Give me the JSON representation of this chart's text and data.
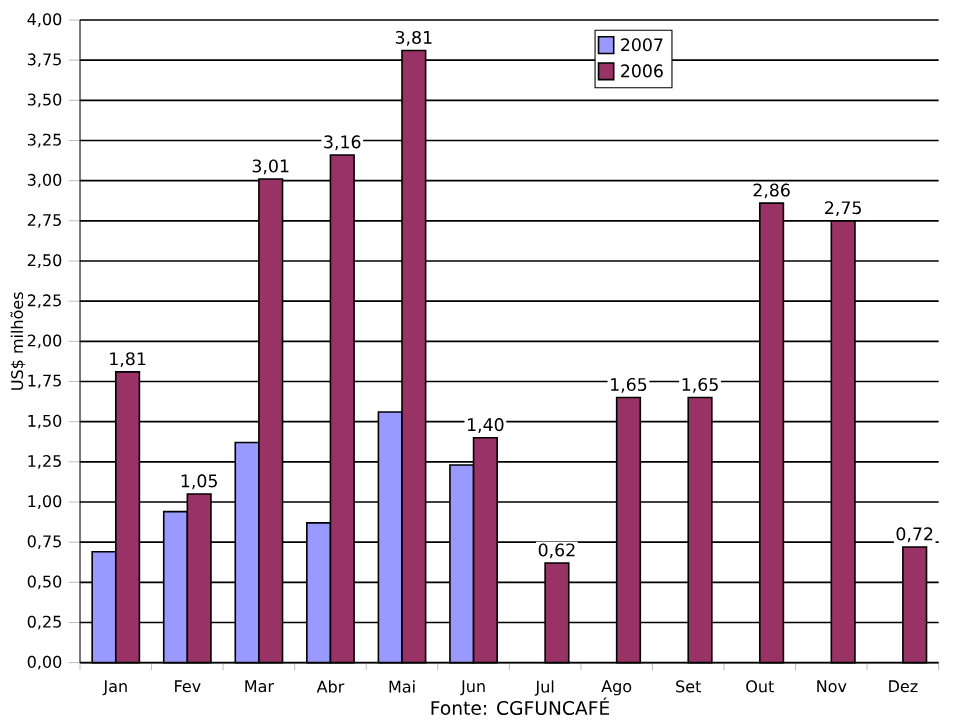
{
  "chart_data": {
    "type": "bar",
    "ylabel": "US$ milhões",
    "categories": [
      "Jan",
      "Fev",
      "Mar",
      "Abr",
      "Mai",
      "Jun",
      "Jul",
      "Ago",
      "Set",
      "Out",
      "Nov",
      "Dez"
    ],
    "series": [
      {
        "name": "2007",
        "color": "#9999ff",
        "values": [
          0.69,
          0.94,
          1.37,
          0.87,
          1.56,
          1.23,
          null,
          null,
          null,
          null,
          null,
          null
        ]
      },
      {
        "name": "2006",
        "color": "#993366",
        "values": [
          1.81,
          1.05,
          3.01,
          3.16,
          3.81,
          1.4,
          0.62,
          1.65,
          1.65,
          2.86,
          2.75,
          0.72
        ],
        "value_labels": [
          "1,81",
          "1,05",
          "3,01",
          "3,16",
          "3,81",
          "1,40",
          "0,62",
          "1,65",
          "1,65",
          "2,86",
          "2,75",
          "0,72"
        ]
      }
    ],
    "ylim": [
      0,
      4
    ],
    "yticks": [
      {
        "value": 0,
        "label": "0,00"
      },
      {
        "value": 0.25,
        "label": "0,25"
      },
      {
        "value": 0.5,
        "label": "0,50"
      },
      {
        "value": 0.75,
        "label": "0,75"
      },
      {
        "value": 1,
        "label": "1,00"
      },
      {
        "value": 1.25,
        "label": "1,25"
      },
      {
        "value": 1.5,
        "label": "1,50"
      },
      {
        "value": 1.75,
        "label": "1,75"
      },
      {
        "value": 2,
        "label": "2,00"
      },
      {
        "value": 2.25,
        "label": "2,25"
      },
      {
        "value": 2.5,
        "label": "2,50"
      },
      {
        "value": 2.75,
        "label": "2,75"
      },
      {
        "value": 3,
        "label": "3,00"
      },
      {
        "value": 3.25,
        "label": "3,25"
      },
      {
        "value": 3.5,
        "label": "3,50"
      },
      {
        "value": 3.75,
        "label": "3,75"
      },
      {
        "value": 4,
        "label": "4,00"
      }
    ],
    "grid": "y",
    "legend": "top right",
    "annotations": [
      "Fonte: CGFUNCAFÉ"
    ]
  }
}
